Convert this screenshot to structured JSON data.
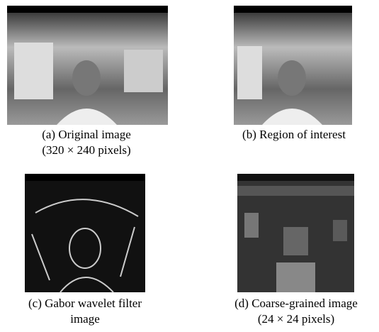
{
  "figures": [
    {
      "caption": [
        "(a) Original image",
        "(320 × 240 pixels)"
      ]
    },
    {
      "caption": [
        "(b) Region of interest"
      ]
    },
    {
      "caption": [
        "(c) Gabor wavelet filter",
        "image"
      ]
    },
    {
      "caption": [
        "(d) Coarse-grained image",
        "(24 × 24 pixels)"
      ]
    }
  ]
}
